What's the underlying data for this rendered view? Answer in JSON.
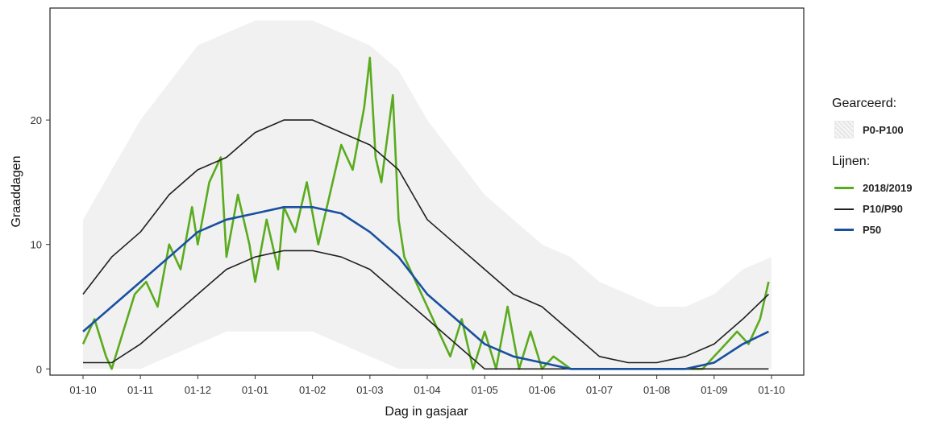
{
  "chart_data": {
    "type": "line",
    "title": "",
    "xlabel": "Dag in gasjaar",
    "ylabel": "Graaddagen",
    "x_ticks": [
      "01-10",
      "01-11",
      "01-12",
      "01-01",
      "01-02",
      "01-03",
      "01-04",
      "01-05",
      "01-06",
      "01-07",
      "01-08",
      "01-09",
      "01-10"
    ],
    "y_ticks": [
      0,
      10,
      20
    ],
    "ylim": [
      -0.5,
      29
    ],
    "grid": false,
    "legend_position": "right",
    "legend": {
      "fill_title": "Gearceerd:",
      "fill_items": [
        "P0-P100"
      ],
      "line_title": "Lijnen:",
      "line_items": [
        "2018/2019",
        "P10/P90",
        "P50"
      ]
    },
    "band": {
      "name": "P0-P100",
      "color": "#e0e0e0",
      "x_month": [
        0,
        0.5,
        1,
        1.5,
        2,
        2.5,
        3,
        3.5,
        4,
        4.5,
        5,
        5.5,
        6,
        6.5,
        7,
        7.5,
        8,
        8.5,
        9,
        9.5,
        10,
        10.5,
        11,
        11.5,
        12
      ],
      "low": [
        0,
        0,
        0,
        1,
        2,
        3,
        3,
        3,
        3,
        2,
        1,
        0,
        0,
        0,
        0,
        0,
        0,
        0,
        0,
        0,
        0,
        0,
        0,
        0,
        0
      ],
      "high": [
        12,
        16,
        20,
        23,
        26,
        27,
        28,
        28,
        28,
        27,
        26,
        24,
        20,
        17,
        14,
        12,
        10,
        9,
        7,
        6,
        5,
        5,
        6,
        8,
        9
      ]
    },
    "series": [
      {
        "name": "2018/2019",
        "color": "#5aab1e",
        "x_month": [
          0,
          0.2,
          0.4,
          0.5,
          0.7,
          0.9,
          1.1,
          1.3,
          1.5,
          1.7,
          1.9,
          2.0,
          2.2,
          2.4,
          2.5,
          2.7,
          2.9,
          3.0,
          3.2,
          3.4,
          3.5,
          3.7,
          3.9,
          4.1,
          4.3,
          4.5,
          4.7,
          4.9,
          5.0,
          5.1,
          5.2,
          5.4,
          5.5,
          5.6,
          5.8,
          6.0,
          6.2,
          6.4,
          6.6,
          6.8,
          7.0,
          7.2,
          7.4,
          7.6,
          7.8,
          8.0,
          8.2,
          8.5,
          8.8,
          9.0,
          9.3,
          9.6,
          10.0,
          10.4,
          10.8,
          11.0,
          11.2,
          11.4,
          11.6,
          11.8,
          11.95
        ],
        "values": [
          2,
          4,
          1,
          0,
          3,
          6,
          7,
          5,
          10,
          8,
          13,
          10,
          15,
          17,
          9,
          14,
          10,
          7,
          12,
          8,
          13,
          11,
          15,
          10,
          14,
          18,
          16,
          21,
          25,
          17,
          15,
          22,
          12,
          9,
          7,
          5,
          3,
          1,
          4,
          0,
          3,
          0,
          5,
          0,
          3,
          0,
          1,
          0,
          0,
          0,
          0,
          0,
          0,
          0,
          0,
          1,
          2,
          3,
          2,
          4,
          7
        ]
      },
      {
        "name": "P10/P90",
        "color": "#1f1f1f",
        "x_month": [
          0,
          0.5,
          1,
          1.5,
          2,
          2.5,
          3,
          3.5,
          4,
          4.5,
          5,
          5.5,
          6,
          6.5,
          7,
          7.5,
          8,
          8.5,
          9,
          9.5,
          10,
          10.5,
          11,
          11.5,
          11.95
        ],
        "values": [
          6,
          9,
          11,
          14,
          16,
          17,
          19,
          20,
          20,
          19,
          18,
          16,
          12,
          10,
          8,
          6,
          5,
          3,
          1,
          0.5,
          0.5,
          1,
          2,
          4,
          6
        ],
        "values_low": [
          0.5,
          0.5,
          2,
          4,
          6,
          8,
          9,
          9.5,
          9.5,
          9,
          8,
          6,
          4,
          2,
          0,
          0,
          0,
          0,
          0,
          0,
          0,
          0,
          0,
          0,
          0
        ]
      },
      {
        "name": "P50",
        "color": "#1a4fa0",
        "x_month": [
          0,
          0.5,
          1,
          1.5,
          2,
          2.5,
          3,
          3.5,
          4,
          4.5,
          5,
          5.5,
          6,
          6.5,
          7,
          7.5,
          8,
          8.5,
          9,
          9.5,
          10,
          10.5,
          11,
          11.5,
          11.95
        ],
        "values": [
          3,
          5,
          7,
          9,
          11,
          12,
          12.5,
          13,
          13,
          12.5,
          11,
          9,
          6,
          4,
          2,
          1,
          0.5,
          0,
          0,
          0,
          0,
          0,
          0.5,
          2,
          3
        ]
      }
    ]
  }
}
